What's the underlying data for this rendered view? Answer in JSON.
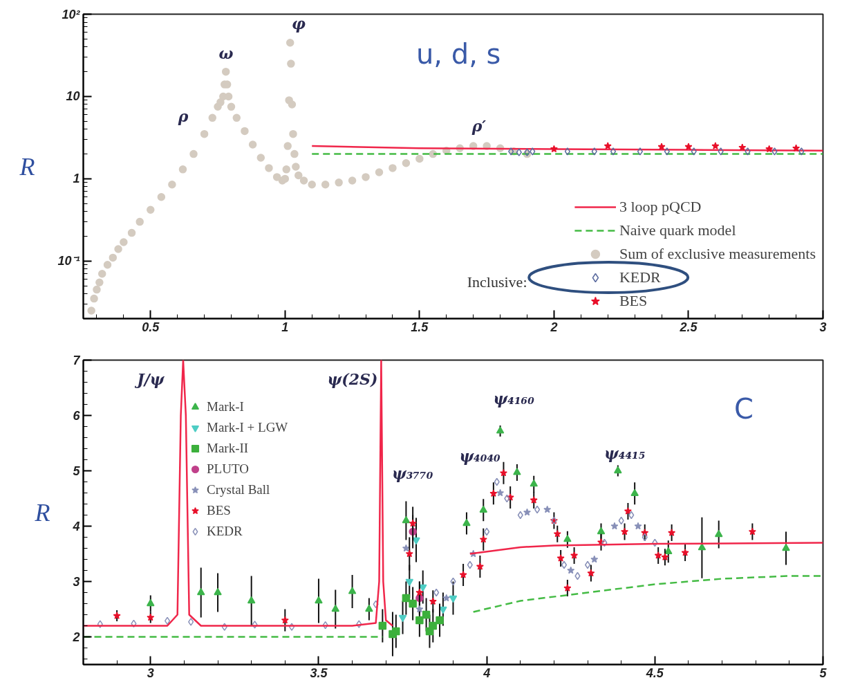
{
  "chart_data": [
    {
      "type": "scatter",
      "ylabel": "R",
      "log": true,
      "xlim": [
        0.25,
        3
      ],
      "ylim": [
        0.02,
        100
      ],
      "xticks": [
        0.5,
        1,
        1.5,
        2,
        2.5,
        3
      ],
      "yticks": [
        {
          "value": 0.1,
          "label": "10⁻¹"
        },
        1,
        10,
        {
          "value": 100,
          "label": "10²"
        }
      ],
      "legend": "bottom right",
      "annotations": [
        "u, d, s",
        "Inclusive:",
        "ρ",
        "ω",
        "φ",
        "ρ′"
      ],
      "series": [
        {
          "name": "Sum of exclusive measurements",
          "marker": "circle",
          "color": "#d4cbc0",
          "x": [
            0.28,
            0.29,
            0.3,
            0.31,
            0.32,
            0.34,
            0.36,
            0.38,
            0.4,
            0.43,
            0.46,
            0.5,
            0.54,
            0.58,
            0.62,
            0.66,
            0.7,
            0.73,
            0.75,
            0.76,
            0.77,
            0.775,
            0.78,
            0.785,
            0.79,
            0.8,
            0.82,
            0.85,
            0.88,
            0.91,
            0.94,
            0.97,
            0.99,
            1.0,
            1.005,
            1.01,
            1.015,
            1.019,
            1.022,
            1.026,
            1.03,
            1.035,
            1.04,
            1.05,
            1.07,
            1.1,
            1.15,
            1.2,
            1.25,
            1.3,
            1.35,
            1.4,
            1.45,
            1.5,
            1.55,
            1.6,
            1.65,
            1.7,
            1.75,
            1.8,
            1.85,
            1.9
          ],
          "values": [
            0.025,
            0.035,
            0.045,
            0.055,
            0.07,
            0.09,
            0.11,
            0.14,
            0.17,
            0.22,
            0.3,
            0.42,
            0.6,
            0.85,
            1.3,
            2.0,
            3.5,
            5.5,
            7.5,
            8.5,
            10,
            14,
            20,
            14,
            10,
            7.5,
            5.5,
            3.8,
            2.6,
            1.8,
            1.35,
            1.05,
            0.95,
            1.0,
            1.3,
            2.5,
            9,
            45,
            25,
            8,
            3.5,
            2.0,
            1.4,
            1.1,
            0.95,
            0.85,
            0.85,
            0.9,
            0.95,
            1.05,
            1.2,
            1.35,
            1.55,
            1.75,
            2.0,
            2.2,
            2.35,
            2.5,
            2.5,
            2.35,
            2.15,
            2.0
          ]
        },
        {
          "name": "3 loop pQCD",
          "type": "line",
          "line_style": "solid",
          "color": "#f0264a",
          "x": [
            1.1,
            1.5,
            2,
            2.5,
            3
          ],
          "values": [
            2.5,
            2.35,
            2.3,
            2.25,
            2.2
          ]
        },
        {
          "name": "Naive quark model",
          "type": "line",
          "line_style": "dashed",
          "color": "#44bb44",
          "x": [
            1.1,
            3
          ],
          "values": [
            2,
            2
          ]
        },
        {
          "name": "KEDR",
          "marker": "diamond",
          "color": "#5a6a9e",
          "x": [
            1.84,
            1.87,
            1.9,
            1.92,
            2.05,
            2.15,
            2.22,
            2.32,
            2.42,
            2.52,
            2.62,
            2.72,
            2.82,
            2.92
          ],
          "values": [
            2.15,
            2.1,
            2.1,
            2.15,
            2.15,
            2.15,
            2.15,
            2.15,
            2.15,
            2.15,
            2.15,
            2.15,
            2.15,
            2.15
          ]
        },
        {
          "name": "BES",
          "marker": "star",
          "color": "#e8102a",
          "x": [
            2.0,
            2.2,
            2.4,
            2.5,
            2.6,
            2.7,
            2.8,
            2.9
          ],
          "values": [
            2.3,
            2.5,
            2.45,
            2.45,
            2.5,
            2.4,
            2.3,
            2.35
          ]
        }
      ]
    },
    {
      "type": "scatter",
      "ylabel": "R",
      "xlim": [
        2.8,
        5
      ],
      "ylim": [
        1.5,
        7
      ],
      "xticks": [
        3,
        3.5,
        4,
        4.5,
        5
      ],
      "yticks": [
        2,
        3,
        4,
        5,
        6,
        7
      ],
      "legend": "top left",
      "annotations": [
        "C",
        "J/ψ",
        "ψ(2S)",
        "ψ₃₇₇₀",
        "ψ₄₀₄₀",
        "ψ₄₁₆₀",
        "ψ₄₄₁₅"
      ],
      "series": [
        {
          "name": "Mark-I",
          "marker": "triangle",
          "color": "#3cb44b",
          "x": [
            3.0,
            3.15,
            3.2,
            3.3,
            3.5,
            3.55,
            3.6,
            3.65,
            3.76,
            3.94,
            3.99,
            4.04,
            4.09,
            4.14,
            4.24,
            4.34,
            4.39,
            4.44,
            4.54,
            4.64,
            4.69,
            4.89
          ],
          "values": [
            2.6,
            2.8,
            2.8,
            2.65,
            2.65,
            2.5,
            2.82,
            2.5,
            4.1,
            4.05,
            4.29,
            5.72,
            4.97,
            4.76,
            3.76,
            3.9,
            5.0,
            4.59,
            3.54,
            3.61,
            3.85,
            3.6
          ],
          "errors": [
            0.15,
            0.45,
            0.35,
            0.45,
            0.4,
            0.35,
            0.3,
            0.2,
            0.35,
            0.2,
            0.2,
            0.1,
            0.15,
            0.15,
            0.15,
            0.15,
            0.1,
            0.2,
            0.2,
            0.55,
            0.25,
            0.3
          ]
        },
        {
          "name": "Mark-I + LGW",
          "marker": "triangle_down",
          "color": "#4ecdc4",
          "x": [
            3.75,
            3.77,
            3.79,
            3.81,
            3.87,
            3.9
          ],
          "values": [
            2.35,
            3.0,
            3.75,
            2.9,
            2.5,
            2.7
          ],
          "errors": [
            0.3,
            0.3,
            0.4,
            0.3,
            0.3,
            0.3
          ]
        },
        {
          "name": "Mark-II",
          "marker": "square",
          "color": "#3cb03c",
          "x": [
            3.69,
            3.72,
            3.73,
            3.76,
            3.78,
            3.8,
            3.82,
            3.83,
            3.84,
            3.86
          ],
          "values": [
            2.2,
            2.05,
            2.1,
            2.7,
            2.6,
            2.3,
            2.4,
            2.1,
            2.2,
            2.3
          ],
          "errors": [
            0.3,
            0.4,
            0.3,
            0.3,
            0.3,
            0.3,
            0.3,
            0.3,
            0.3,
            0.3
          ]
        },
        {
          "name": "PLUTO",
          "marker": "circle",
          "color": "#c0408a",
          "x": [
            3.78,
            3.8
          ],
          "values": [
            3.9,
            2.7
          ],
          "errors": [
            0.3,
            0.3
          ]
        },
        {
          "name": "Crystal Ball",
          "marker": "star",
          "color": "#8890b8",
          "x": [
            3.76,
            3.8,
            3.88,
            3.96,
            4.04,
            4.12,
            4.18,
            4.25,
            4.32,
            4.38,
            4.45
          ],
          "values": [
            3.6,
            2.5,
            2.7,
            3.5,
            4.6,
            4.25,
            4.3,
            3.2,
            3.4,
            4.0,
            4.0
          ]
        },
        {
          "name": "BES",
          "marker": "star",
          "color": "#e8102a",
          "x": [
            2.9,
            3.0,
            3.4,
            3.77,
            3.78,
            3.8,
            3.84,
            3.93,
            3.98,
            3.99,
            4.02,
            4.05,
            4.07,
            4.14,
            4.2,
            4.21,
            4.22,
            4.24,
            4.26,
            4.31,
            4.34,
            4.41,
            4.42,
            4.47,
            4.51,
            4.53,
            4.55,
            4.59,
            4.79
          ],
          "values": [
            2.38,
            2.35,
            2.3,
            3.5,
            4.05,
            2.8,
            2.64,
            3.12,
            3.27,
            3.76,
            4.59,
            4.96,
            4.52,
            4.47,
            4.1,
            3.86,
            3.42,
            2.88,
            3.47,
            3.15,
            3.71,
            3.9,
            4.27,
            3.88,
            3.47,
            3.44,
            3.88,
            3.52,
            3.9
          ],
          "errors": [
            0.1,
            0.1,
            0.2,
            0.3,
            0.3,
            0.2,
            0.2,
            0.2,
            0.2,
            0.2,
            0.2,
            0.2,
            0.2,
            0.15,
            0.15,
            0.15,
            0.15,
            0.15,
            0.15,
            0.15,
            0.15,
            0.15,
            0.15,
            0.15,
            0.15,
            0.15,
            0.15,
            0.15,
            0.15
          ]
        },
        {
          "name": "KEDR",
          "marker": "diamond",
          "color": "#8890b8",
          "x": [
            2.85,
            2.95,
            3.05,
            3.12,
            3.22,
            3.31,
            3.42,
            3.52,
            3.62,
            3.67,
            3.85,
            3.9,
            3.95,
            4.0,
            4.03,
            4.06,
            4.1,
            4.15,
            4.2,
            4.23,
            4.27,
            4.3,
            4.35,
            4.4,
            4.43,
            4.47,
            4.5
          ],
          "values": [
            2.23,
            2.24,
            2.29,
            2.27,
            2.18,
            2.22,
            2.18,
            2.21,
            2.23,
            2.59,
            2.8,
            3.0,
            3.3,
            3.9,
            4.8,
            4.5,
            4.2,
            4.3,
            4.1,
            3.3,
            3.1,
            3.3,
            3.7,
            4.1,
            4.2,
            3.8,
            3.7
          ]
        },
        {
          "type": "line",
          "line_style": "solid",
          "color": "#f0264a",
          "x": [
            2.8,
            3.05,
            3.08,
            3.09,
            3.097,
            3.105,
            3.115,
            3.15,
            3.6,
            3.67,
            3.68,
            3.686,
            3.692,
            3.7,
            3.72,
            3.8,
            3.95,
            4.1,
            4.2,
            4.5,
            5.0
          ],
          "values": [
            2.2,
            2.2,
            2.4,
            6.0,
            7.0,
            6.0,
            2.4,
            2.2,
            2.2,
            2.25,
            3.0,
            7.0,
            3.0,
            2.3,
            2.2,
            null,
            3.5,
            3.62,
            3.65,
            3.68,
            3.7
          ]
        },
        {
          "type": "line",
          "line_style": "dashed",
          "color": "#44bb44",
          "x": [
            2.8,
            3.69,
            3.9,
            3.96,
            4.1,
            4.3,
            4.5,
            4.6,
            4.7,
            4.9,
            5.0
          ],
          "values": [
            2.0,
            2.0,
            null,
            2.45,
            2.65,
            2.8,
            2.95,
            3.0,
            3.05,
            3.1,
            3.1
          ]
        }
      ]
    }
  ]
}
